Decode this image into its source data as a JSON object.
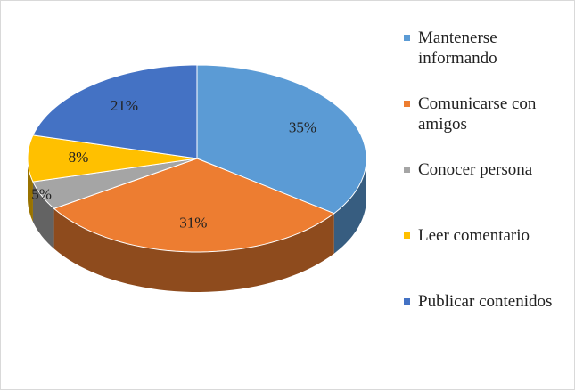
{
  "chart_data": {
    "type": "pie3d",
    "categories": [
      "Mantenerse informando",
      "Comunicarse con amigos",
      "Conocer persona",
      "Leer comentario",
      "Publicar contenidos"
    ],
    "values": [
      35,
      31,
      5,
      8,
      21
    ],
    "value_labels": [
      "35%",
      "31%",
      "5%",
      "8%",
      "21%"
    ],
    "colors": [
      "#5b9bd5",
      "#ed7d31",
      "#a5a5a5",
      "#ffc000",
      "#4472c4"
    ]
  }
}
